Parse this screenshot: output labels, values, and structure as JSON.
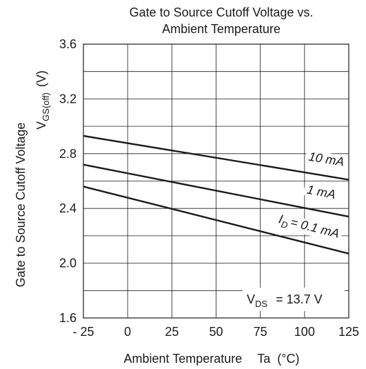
{
  "chart_data": {
    "type": "line",
    "title_line1": "Gate to Source Cutoff Voltage vs.",
    "title_line2": "Ambient Temperature",
    "ylabel": "Gate to Source Cutoff Voltage",
    "ylabel_symbol_main": "V",
    "ylabel_symbol_sub": "GS(off)",
    "ylabel_unit": "(V)",
    "xlabel_main": "Ambient Temperature",
    "xlabel_symbol": "Ta",
    "xlabel_unit": "(°C)",
    "xlim": [
      -25,
      125
    ],
    "ylim": [
      1.6,
      3.6
    ],
    "xticks": [
      -25,
      0,
      25,
      50,
      75,
      100,
      125
    ],
    "xtick_labels": [
      "- 25",
      "0",
      "25",
      "50",
      "75",
      "100",
      "125"
    ],
    "yticks": [
      1.6,
      2.0,
      2.4,
      2.8,
      3.2,
      3.6
    ],
    "ytick_labels": [
      "1.6",
      "2.0",
      "2.4",
      "2.8",
      "3.2",
      "3.6"
    ],
    "grid": true,
    "x_grid_step": 25,
    "y_grid_step": 0.2,
    "series": [
      {
        "name": "10 mA",
        "label_prefix": "",
        "label_sub": "",
        "label_main": "10 mA",
        "x": [
          -25,
          125
        ],
        "y": [
          2.93,
          2.61
        ],
        "label_x": 112,
        "label_y": 2.73
      },
      {
        "name": "1 mA",
        "label_prefix": "",
        "label_sub": "",
        "label_main": "1 mA",
        "x": [
          -25,
          125
        ],
        "y": [
          2.72,
          2.34
        ],
        "label_x": 109,
        "label_y": 2.49
      },
      {
        "name": "I_D = 0.1 mA",
        "label_prefix": "I",
        "label_sub": "D",
        "label_main": "= 0.1 mA",
        "x": [
          -25,
          125
        ],
        "y": [
          2.56,
          2.07
        ],
        "label_x": 102,
        "label_y": 2.24
      }
    ],
    "condition": {
      "symbol": "V",
      "sub": "DS",
      "value": "= 13.7 V"
    }
  }
}
